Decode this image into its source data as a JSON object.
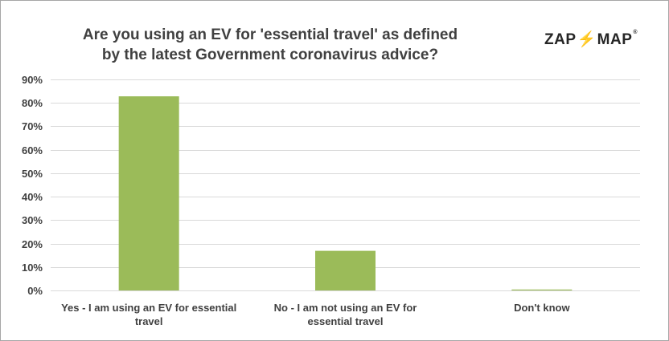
{
  "logo": {
    "left": "ZAP",
    "bolt": "⚡",
    "right": "MAP",
    "reg": "®"
  },
  "chart_data": {
    "type": "bar",
    "title": "Are you using an EV for 'essential travel' as defined by the latest Government coronavirus advice?",
    "title_lines": [
      "Are you using an EV for 'essential travel' as defined",
      "by the latest Government coronavirus advice?"
    ],
    "categories": [
      [
        "Yes - I am using an EV for essential",
        "travel"
      ],
      [
        "No - I am not using an EV for",
        "essential travel"
      ],
      [
        "Don't know"
      ]
    ],
    "values": [
      82.8,
      16.9,
      0.4
    ],
    "ylim": [
      0,
      90
    ],
    "yticks": [
      0,
      10,
      20,
      30,
      40,
      50,
      60,
      70,
      80,
      90
    ],
    "tick_suffix": "%",
    "bar_color": "#9bbb59",
    "grid_color": "#d9d9d9",
    "grid": true,
    "legend": "none"
  }
}
